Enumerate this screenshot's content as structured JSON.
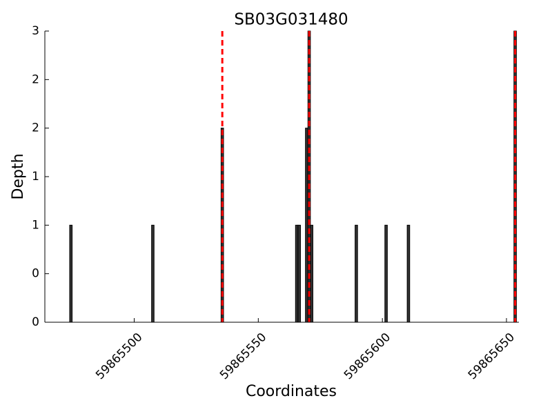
{
  "chart_data": {
    "type": "bar",
    "title": "SB03G031480",
    "xlabel": "Coordinates",
    "ylabel": "Depth",
    "x": [
      59865474,
      59865507,
      59865535,
      59865565,
      59865566,
      59865569,
      59865570,
      59865571,
      59865589,
      59865601,
      59865610,
      59865653
    ],
    "values": [
      1,
      1,
      2,
      1,
      1,
      2,
      3,
      1,
      1,
      1,
      1,
      3
    ],
    "bar_width": 1,
    "color": "#333333",
    "edgecolor": "#000000",
    "vlines": [
      59865535.5,
      59865570.5,
      59865653.5
    ],
    "vline_color": "#ff0000",
    "xlim": [
      59865464,
      59865655
    ],
    "xticks": [
      59865500,
      59865550,
      59865600,
      59865650
    ],
    "ylim": [
      0,
      3
    ],
    "yticks": [
      0,
      {
        "value": 0.5,
        "label": "0"
      },
      1,
      {
        "value": 1.5,
        "label": "1"
      },
      2,
      {
        "value": 2.5,
        "label": "2"
      },
      3
    ],
    "grid": false
  }
}
